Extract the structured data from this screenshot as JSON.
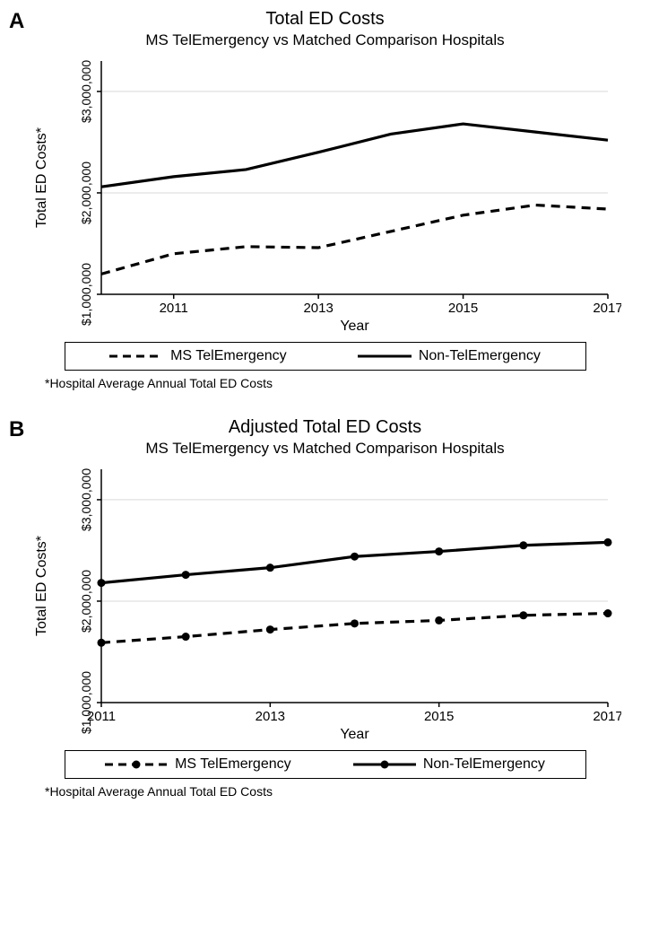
{
  "panelA": {
    "panel_label": "A",
    "title": "Total ED Costs",
    "subtitle": "MS TelEmergency vs Matched Comparison Hospitals",
    "xlabel": "Year",
    "ylabel": "Total ED Costs*",
    "footnote": "*Hospital Average Annual Total ED Costs",
    "x_ticks": [
      2011,
      2013,
      2015,
      2017
    ],
    "y_ticks": [
      1000000,
      2000000,
      3000000
    ],
    "y_tick_labels": [
      "$1,000,000",
      "$2,000,000",
      "$3,000,000"
    ],
    "xlim": [
      2010,
      2017
    ],
    "ylim": [
      1000000,
      3300000
    ],
    "background_color": "#ffffff",
    "grid_color": "#d9d9d9",
    "axis_color": "#000000",
    "series": [
      {
        "name": "MS TelEmergency",
        "color": "#000000",
        "dashed": true,
        "markers": false,
        "x": [
          2010,
          2011,
          2012,
          2013,
          2014,
          2015,
          2016,
          2017
        ],
        "y": [
          1200000,
          1400000,
          1470000,
          1460000,
          1620000,
          1780000,
          1880000,
          1840000
        ]
      },
      {
        "name": "Non-TelEmergency",
        "color": "#000000",
        "dashed": false,
        "markers": false,
        "x": [
          2010,
          2011,
          2012,
          2013,
          2014,
          2015,
          2016,
          2017
        ],
        "y": [
          2060000,
          2160000,
          2230000,
          2400000,
          2580000,
          2680000,
          2600000,
          2520000
        ]
      }
    ],
    "legend": [
      "MS TelEmergency",
      "Non-TelEmergency"
    ]
  },
  "panelB": {
    "panel_label": "B",
    "title": "Adjusted Total ED Costs",
    "subtitle": "MS TelEmergency vs Matched Comparison Hospitals",
    "xlabel": "Year",
    "ylabel": "Total ED Costs*",
    "footnote": "*Hospital Average Annual Total ED Costs",
    "x_ticks": [
      2011,
      2013,
      2015,
      2017
    ],
    "y_ticks": [
      1000000,
      2000000,
      3000000
    ],
    "y_tick_labels": [
      "$1,000,000",
      "$2,000,000",
      "$3,000,000"
    ],
    "xlim": [
      2011,
      2017
    ],
    "ylim": [
      1000000,
      3300000
    ],
    "background_color": "#ffffff",
    "grid_color": "#d9d9d9",
    "axis_color": "#000000",
    "series": [
      {
        "name": "MS TelEmergency",
        "color": "#000000",
        "dashed": true,
        "markers": true,
        "x": [
          2011,
          2012,
          2013,
          2014,
          2015,
          2016,
          2017
        ],
        "y": [
          1590000,
          1650000,
          1720000,
          1780000,
          1810000,
          1860000,
          1880000
        ]
      },
      {
        "name": "Non-TelEmergency",
        "color": "#000000",
        "dashed": false,
        "markers": true,
        "x": [
          2011,
          2012,
          2013,
          2014,
          2015,
          2016,
          2017
        ],
        "y": [
          2180000,
          2260000,
          2330000,
          2440000,
          2490000,
          2550000,
          2580000
        ]
      }
    ],
    "legend": [
      "MS TelEmergency",
      "Non-TelEmergency"
    ]
  }
}
